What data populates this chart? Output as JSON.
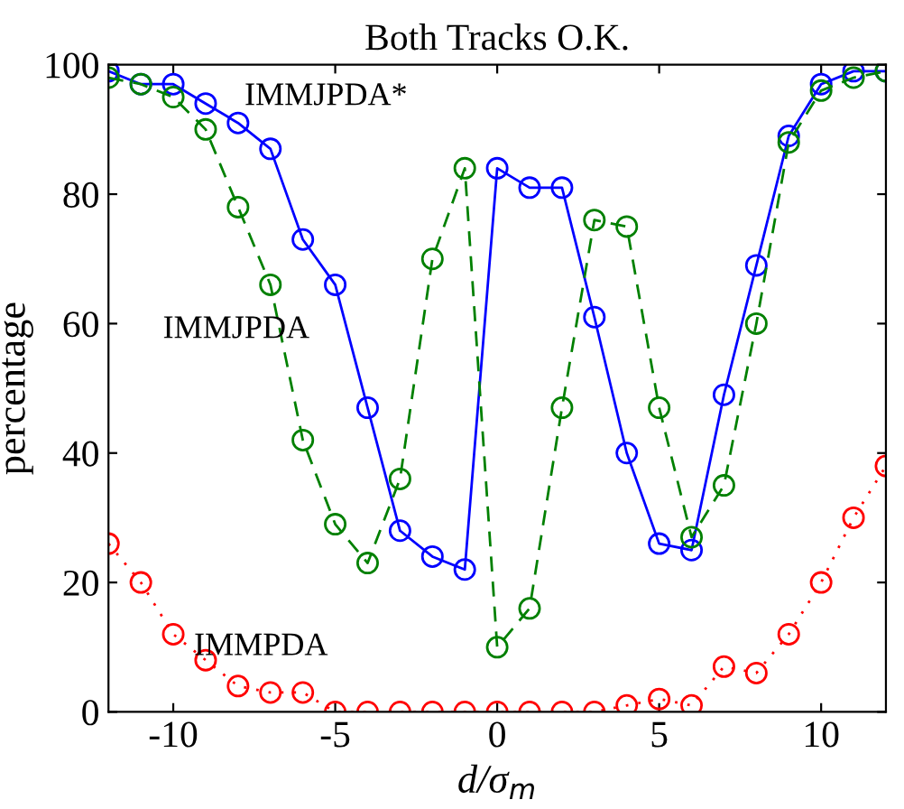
{
  "chart_data": {
    "type": "line",
    "title": "Both Tracks O.K.",
    "xlabel": "d/σ$_{m}$",
    "ylabel": "percentage",
    "x": [
      -12,
      -11,
      -10,
      -9,
      -8,
      -7,
      -6,
      -5,
      -4,
      -3,
      -2,
      -1,
      0,
      1,
      2,
      3,
      4,
      5,
      6,
      7,
      8,
      9,
      10,
      11,
      12
    ],
    "xlim": [
      -12,
      12
    ],
    "ylim": [
      0,
      100
    ],
    "xticks": [
      -10,
      -5,
      0,
      5,
      10
    ],
    "yticks": [
      0,
      20,
      40,
      60,
      80,
      100
    ],
    "marker": "circle",
    "grid": false,
    "legend": false,
    "series": [
      {
        "color": "#0000ff",
        "line_style": "solid",
        "values": [
          99,
          97,
          97,
          94,
          91,
          87,
          73,
          66,
          47,
          28,
          24,
          22,
          84,
          81,
          81,
          61,
          40,
          26,
          25,
          49,
          69,
          89,
          97,
          99,
          99
        ]
      },
      {
        "color": "#008000",
        "line_style": "dashed",
        "values": [
          98,
          97,
          95,
          90,
          78,
          66,
          42,
          29,
          23,
          36,
          70,
          84,
          10,
          16,
          47,
          76,
          75,
          47,
          27,
          35,
          60,
          88,
          96,
          98,
          99
        ]
      },
      {
        "color": "#ff0000",
        "line_style": "dotted",
        "values": [
          26,
          20,
          12,
          8,
          4,
          3,
          3,
          0,
          0,
          0,
          0,
          0,
          0,
          0,
          0,
          0,
          1,
          2,
          1,
          7,
          6,
          12,
          20,
          30,
          38
        ]
      }
    ],
    "annotations": [
      "IMMJPDA*",
      "IMMJPDA",
      "IMMPDA"
    ]
  }
}
